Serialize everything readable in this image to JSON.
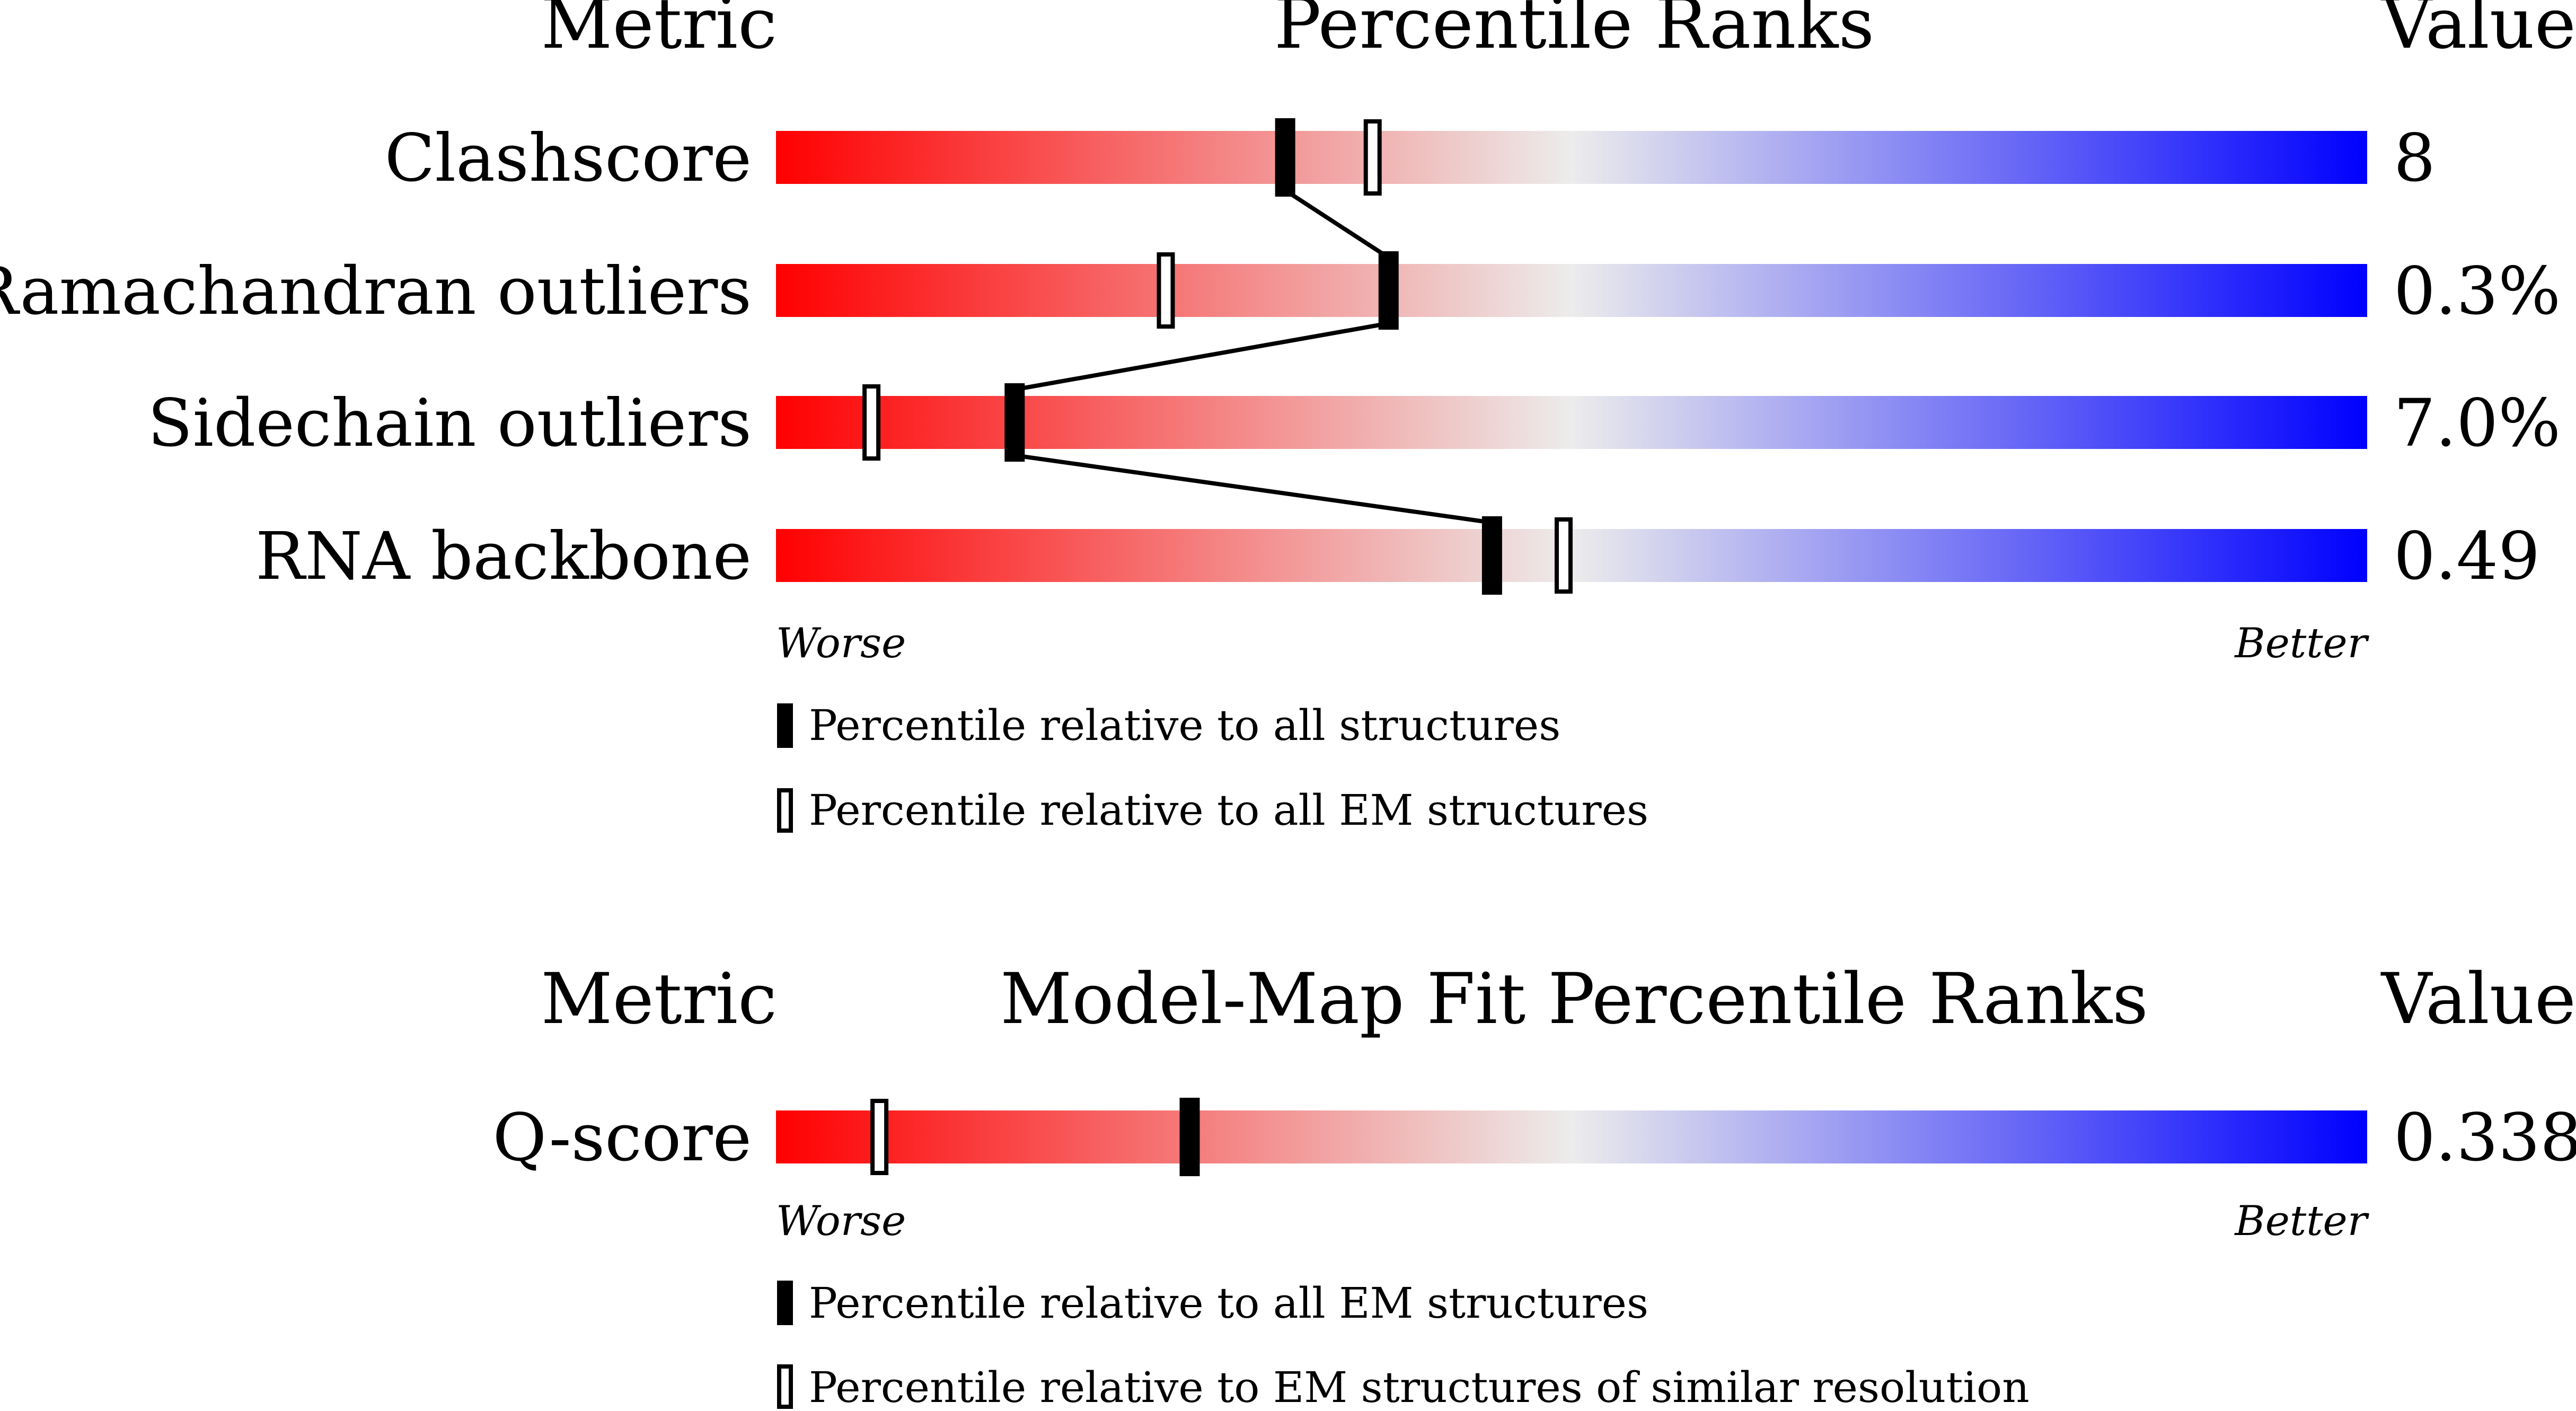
{
  "chart_data": [
    {
      "type": "percentile-bar",
      "header": {
        "metric": "Metric",
        "title": "Percentile Ranks",
        "value": "Value"
      },
      "axis": {
        "worse": "Worse",
        "better": "Better"
      },
      "rows": [
        {
          "metric": "Clashscore",
          "value": "8",
          "percentile_all": 32,
          "percentile_em": 37.5
        },
        {
          "metric": "Ramachandran outliers",
          "value": "0.3%",
          "percentile_all": 38.5,
          "percentile_em": 24.5
        },
        {
          "metric": "Sidechain outliers",
          "value": "7.0%",
          "percentile_all": 15,
          "percentile_em": 6
        },
        {
          "metric": "RNA backbone",
          "value": "0.49",
          "percentile_all": 45,
          "percentile_em": 49.5
        }
      ],
      "connect_filled_markers": true,
      "legend": [
        {
          "marker": "filled",
          "label": "Percentile relative to all structures"
        },
        {
          "marker": "open",
          "label": "Percentile relative to all EM structures"
        }
      ]
    },
    {
      "type": "percentile-bar",
      "header": {
        "metric": "Metric",
        "title": "Model-Map Fit Percentile Ranks",
        "value": "Value"
      },
      "axis": {
        "worse": "Worse",
        "better": "Better"
      },
      "rows": [
        {
          "metric": "Q-score",
          "value": "0.338",
          "percentile_all": 26,
          "percentile_em": 6.5
        }
      ],
      "connect_filled_markers": false,
      "legend": [
        {
          "marker": "filled",
          "label": "Percentile relative to all EM structures"
        },
        {
          "marker": "open",
          "label": "Percentile relative to EM structures of similar resolution"
        }
      ]
    }
  ],
  "colors": {
    "worse": "#ff0000",
    "mid": "#ececec",
    "better": "#0000ff",
    "marker": "#000000"
  }
}
